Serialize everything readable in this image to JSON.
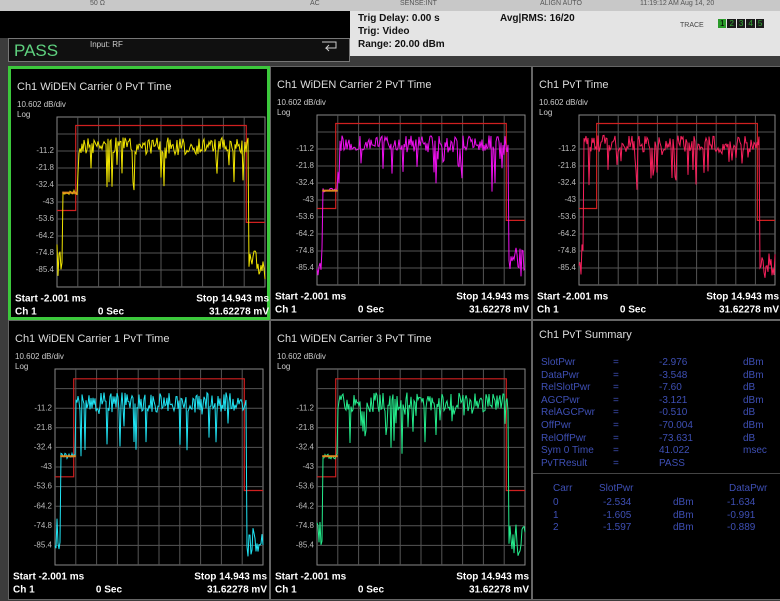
{
  "status_bar": {
    "items": [
      "50 Ω",
      "AC",
      "SENSE:INT",
      "ALIGN AUTO",
      "11:19:12 AM Aug 14, 20"
    ],
    "trig_delay": "Trig Delay: 0.00 s",
    "trig": "Trig: Video",
    "range": "Range: 20.00 dBm",
    "avg": "Avg|RMS: 16/20",
    "trace_label": "TRACE",
    "trace_numbers": [
      "1",
      "2",
      "3",
      "4",
      "5"
    ]
  },
  "result": "PASS",
  "input": "Input: RF",
  "pvt_panels": [
    {
      "title": "Ch1 WiDEN Carrier 0 PvT Time",
      "scale": "10.602 dB/div",
      "scale_type": "Log",
      "y_labels": [
        "-11.2",
        "-21.8",
        "-32.4",
        "-43",
        "-53.6",
        "-64.2",
        "-74.8",
        "-85.4"
      ],
      "start": "Start -2.001 ms",
      "stop": "Stop 14.943 ms",
      "channel": "Ch 1",
      "time": "0 Sec",
      "ref": "31.62278 mV"
    },
    {
      "title": "Ch1 WiDEN Carrier 2 PvT Time",
      "scale": "10.602 dB/div",
      "scale_type": "Log",
      "y_labels": [
        "-11.2",
        "-21.8",
        "-32.4",
        "-43",
        "-53.6",
        "-64.2",
        "-74.8",
        "-85.4"
      ],
      "start": "Start -2.001 ms",
      "stop": "Stop 14.943 ms",
      "channel": "Ch 1",
      "time": "0 Sec",
      "ref": "31.62278 mV"
    },
    {
      "title": "Ch1 PvT Time",
      "scale": "10.602 dB/div",
      "scale_type": "Log",
      "y_labels": [
        "-11.2",
        "-21.8",
        "-32.4",
        "-43",
        "-53.6",
        "-64.2",
        "-74.8",
        "-85.4"
      ],
      "start": "Start -2.001 ms",
      "stop": "Stop 14.943 ms",
      "channel": "Ch 1",
      "time": "0 Sec",
      "ref": "31.62278 mV"
    },
    {
      "title": "Ch1 WiDEN Carrier 1 PvT Time",
      "scale": "10.602 dB/div",
      "scale_type": "Log",
      "y_labels": [
        "-11.2",
        "-21.8",
        "-32.4",
        "-43",
        "-53.6",
        "-64.2",
        "-74.8",
        "-85.4"
      ],
      "start": "Start -2.001 ms",
      "stop": "Stop 14.943 ms",
      "channel": "Ch 1",
      "time": "0 Sec",
      "ref": "31.62278 mV"
    },
    {
      "title": "Ch1 WiDEN Carrier 3 PvT Time",
      "scale": "10.602 dB/div",
      "scale_type": "Log",
      "y_labels": [
        "-11.2",
        "-21.8",
        "-32.4",
        "-43",
        "-53.6",
        "-64.2",
        "-74.8",
        "-85.4"
      ],
      "start": "Start -2.001 ms",
      "stop": "Stop 14.943 ms",
      "channel": "Ch 1",
      "time": "0 Sec",
      "ref": "31.62278 mV"
    }
  ],
  "summary": {
    "title": "Ch1 PvT Summary",
    "rows": [
      [
        "SlotPwr",
        "=",
        "-2.976",
        "dBm"
      ],
      [
        "DataPwr",
        "=",
        "-3.548",
        "dBm"
      ],
      [
        "RelSlotPwr",
        "=",
        "-7.60",
        "dB"
      ],
      [
        "AGCPwr",
        "=",
        "-3.121",
        "dBm"
      ],
      [
        "RelAGCPwr",
        "=",
        "-0.510",
        "dB"
      ],
      [
        "OffPwr",
        "=",
        "-70.004",
        "dBm"
      ],
      [
        "RelOffPwr",
        "=",
        "-73.631",
        "dB"
      ],
      [
        "Sym 0 Time",
        "=",
        "41.022",
        "msec"
      ],
      [
        "PvTResult",
        "=",
        "PASS"
      ]
    ],
    "table": {
      "header": [
        "Carr",
        "SlotPwr",
        "DataPwr"
      ],
      "rows": [
        [
          "0",
          "-2.534",
          "dBm",
          "-1.634"
        ],
        [
          "1",
          "-1.605",
          "dBm",
          "-0.991"
        ],
        [
          "2",
          "-1.597",
          "dBm",
          "-0.889"
        ]
      ]
    }
  }
}
